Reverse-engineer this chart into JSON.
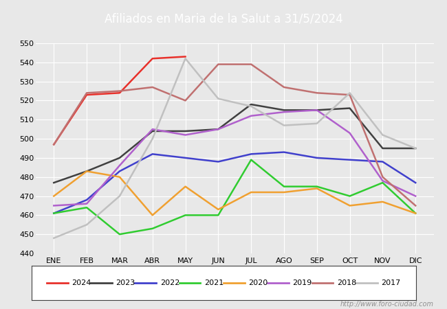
{
  "title": "Afiliados en Maria de la Salut a 31/5/2024",
  "background_color": "#e8e8e8",
  "plot_background": "#e8e8e8",
  "ylim": [
    440,
    550
  ],
  "yticks": [
    440,
    450,
    460,
    470,
    480,
    490,
    500,
    510,
    520,
    530,
    540,
    550
  ],
  "months": [
    "ENE",
    "FEB",
    "MAR",
    "ABR",
    "MAY",
    "JUN",
    "JUL",
    "AGO",
    "SEP",
    "OCT",
    "NOV",
    "DIC"
  ],
  "watermark": "http://www.foro-ciudad.com",
  "title_bar_color": "#5b9bd5",
  "series": {
    "2024": {
      "color": "#e8302a",
      "data": [
        497,
        523,
        524,
        542,
        543,
        null,
        null,
        null,
        null,
        null,
        null,
        null
      ]
    },
    "2023": {
      "color": "#404040",
      "data": [
        477,
        483,
        490,
        504,
        504,
        505,
        518,
        515,
        515,
        516,
        495,
        495
      ]
    },
    "2022": {
      "color": "#4040cc",
      "data": [
        461,
        468,
        483,
        492,
        490,
        488,
        492,
        493,
        490,
        489,
        488,
        477
      ]
    },
    "2021": {
      "color": "#30cc30",
      "data": [
        461,
        464,
        450,
        453,
        460,
        460,
        489,
        475,
        475,
        470,
        477,
        461
      ]
    },
    "2020": {
      "color": "#f0a030",
      "data": [
        470,
        483,
        480,
        460,
        475,
        463,
        472,
        472,
        474,
        465,
        467,
        461
      ]
    },
    "2019": {
      "color": "#b060cc",
      "data": [
        465,
        466,
        486,
        505,
        502,
        505,
        512,
        514,
        515,
        503,
        478,
        470
      ]
    },
    "2018": {
      "color": "#c07070",
      "data": [
        497,
        524,
        525,
        527,
        520,
        539,
        539,
        527,
        524,
        523,
        480,
        465
      ]
    },
    "2017": {
      "color": "#c0c0c0",
      "data": [
        448,
        455,
        470,
        500,
        542,
        521,
        517,
        507,
        508,
        524,
        502,
        495
      ]
    }
  }
}
